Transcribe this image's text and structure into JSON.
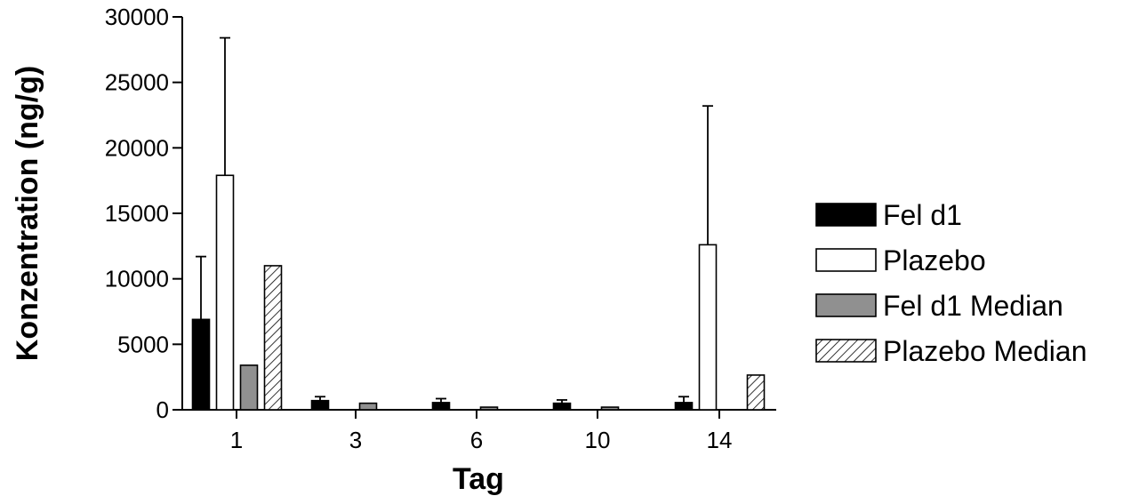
{
  "chart_data": {
    "type": "bar",
    "title": "",
    "xlabel": "Tag",
    "ylabel": "Konzentration (ng/g)",
    "categories": [
      "1",
      "3",
      "6",
      "10",
      "14"
    ],
    "ylim": [
      0,
      30000
    ],
    "yticks": [
      0,
      5000,
      10000,
      15000,
      20000,
      25000,
      30000
    ],
    "yticks_labels": [
      "0",
      "5000",
      "10000",
      "15000",
      "20000",
      "25000",
      "30000"
    ],
    "legend_position": "right",
    "grid": false,
    "series": [
      {
        "name": "Fel d1",
        "fill": "solid",
        "color": "#000000",
        "values": [
          6900,
          700,
          550,
          500,
          550
        ],
        "error_upper": [
          11700,
          1000,
          850,
          750,
          1000
        ]
      },
      {
        "name": "Plazebo",
        "fill": "solid",
        "color": "#ffffff",
        "values": [
          17900,
          0,
          0,
          0,
          12600
        ],
        "error_upper": [
          28400,
          0,
          0,
          0,
          23200
        ]
      },
      {
        "name": "Fel d1 Median",
        "fill": "solid",
        "color": "#909090",
        "values": [
          3400,
          500,
          200,
          200,
          0
        ]
      },
      {
        "name": "Plazebo Median",
        "fill": "hatched",
        "color": "#ffffff",
        "values": [
          11000,
          0,
          0,
          0,
          2650
        ]
      }
    ]
  }
}
